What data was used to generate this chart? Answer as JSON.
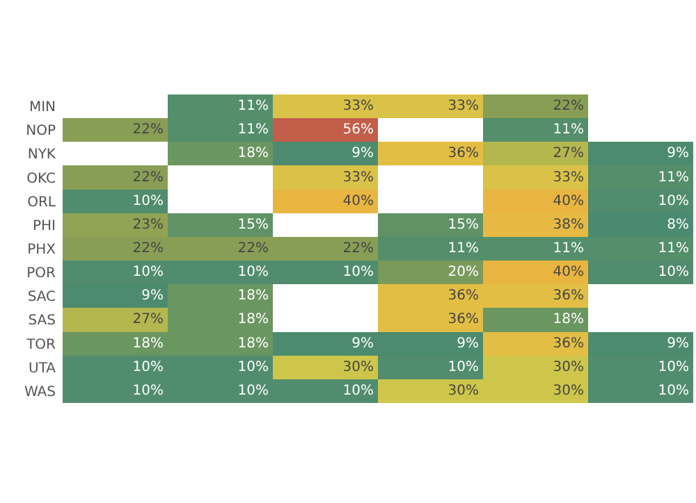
{
  "chart_data": {
    "type": "heatmap",
    "categories": [
      null,
      null,
      null,
      null,
      null,
      null
    ],
    "y_categories": [
      "MIN",
      "NOP",
      "NYK",
      "OKC",
      "ORL",
      "PHI",
      "PHX",
      "POR",
      "SAC",
      "SAS",
      "TOR",
      "UTA",
      "WAS"
    ],
    "cells": [
      [
        null,
        11,
        33,
        33,
        22,
        null
      ],
      [
        22,
        11,
        56,
        null,
        11,
        null
      ],
      [
        null,
        18,
        9,
        36,
        27,
        9
      ],
      [
        22,
        null,
        33,
        null,
        33,
        11
      ],
      [
        10,
        null,
        40,
        null,
        40,
        10
      ],
      [
        23,
        15,
        null,
        15,
        38,
        8
      ],
      [
        22,
        22,
        22,
        11,
        11,
        11
      ],
      [
        10,
        10,
        10,
        20,
        40,
        10
      ],
      [
        9,
        18,
        null,
        36,
        36,
        null
      ],
      [
        27,
        18,
        null,
        36,
        18,
        null
      ],
      [
        18,
        18,
        9,
        9,
        36,
        9
      ],
      [
        10,
        10,
        30,
        10,
        30,
        10
      ],
      [
        10,
        10,
        10,
        30,
        30,
        10
      ]
    ],
    "cell_labels": [
      [
        null,
        "11%",
        "33%",
        "33%",
        "22%",
        null
      ],
      [
        "22%",
        "11%",
        "56%",
        null,
        "11%",
        null
      ],
      [
        null,
        "18%",
        "9%",
        "36%",
        "27%",
        "9%"
      ],
      [
        "22%",
        null,
        "33%",
        null,
        "33%",
        "11%"
      ],
      [
        "10%",
        null,
        "40%",
        null,
        "40%",
        "10%"
      ],
      [
        "23%",
        "15%",
        null,
        "15%",
        "38%",
        "8%"
      ],
      [
        "22%",
        "22%",
        "22%",
        "11%",
        "11%",
        "11%"
      ],
      [
        "10%",
        "10%",
        "10%",
        "20%",
        "40%",
        "10%"
      ],
      [
        "9%",
        "18%",
        null,
        "36%",
        "36%",
        null
      ],
      [
        "27%",
        "18%",
        null,
        "36%",
        "18%",
        null
      ],
      [
        "18%",
        "18%",
        "9%",
        "9%",
        "36%",
        "9%"
      ],
      [
        "10%",
        "10%",
        "30%",
        "10%",
        "30%",
        "10%"
      ],
      [
        "10%",
        "10%",
        "10%",
        "30%",
        "30%",
        "10%"
      ]
    ]
  }
}
